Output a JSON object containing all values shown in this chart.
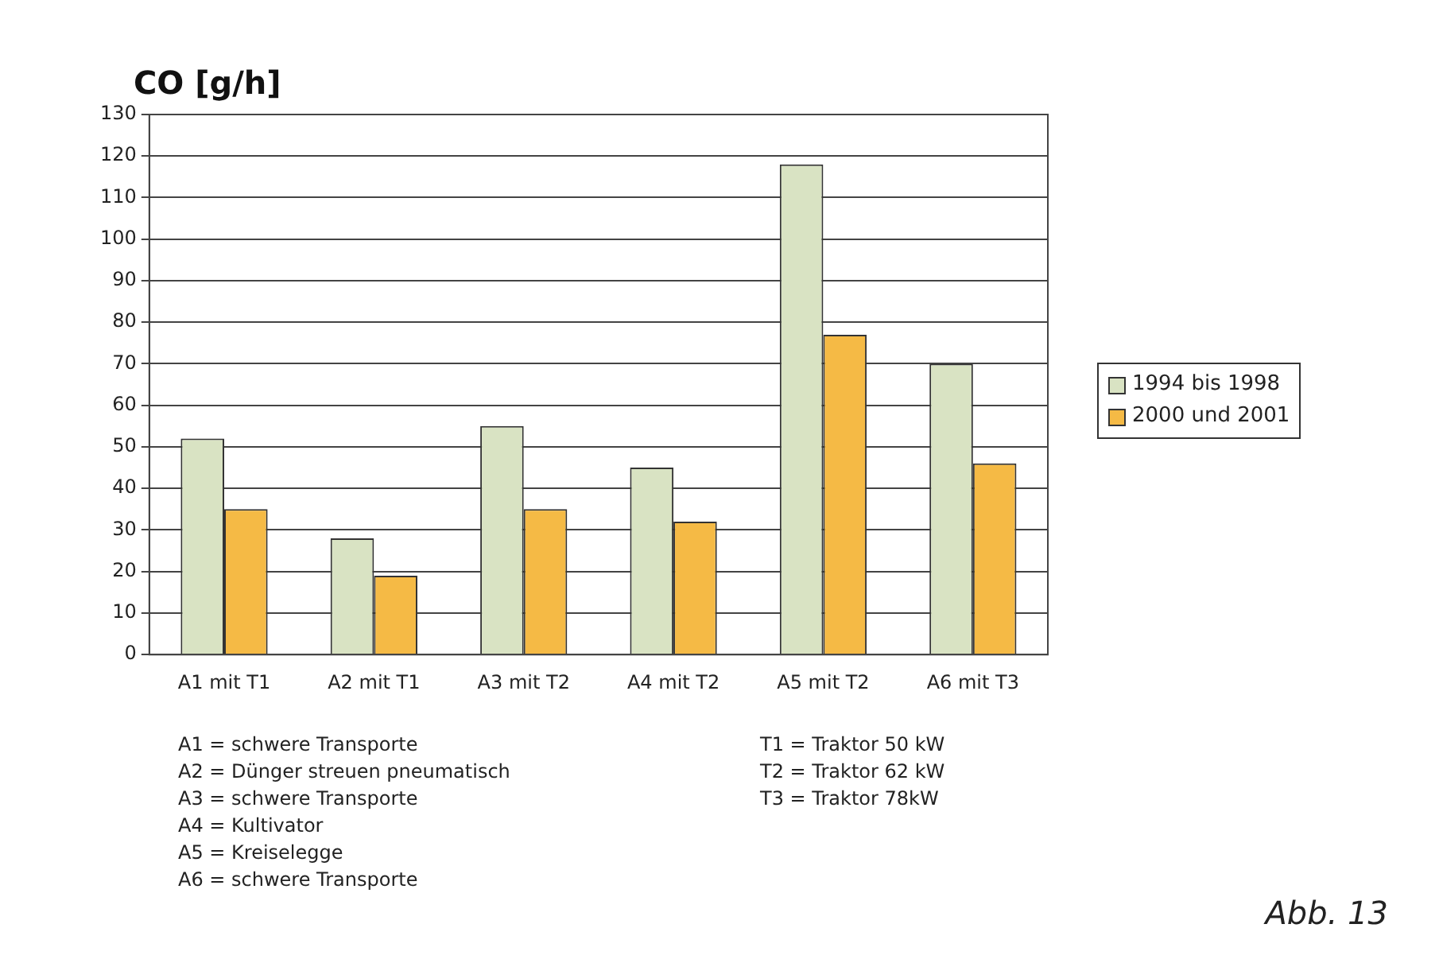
{
  "chart_data": {
    "type": "bar",
    "title": "CO [g/h]",
    "categories": [
      "A1 mit T1",
      "A2 mit T1",
      "A3 mit T2",
      "A4 mit T2",
      "A5 mit T2",
      "A6 mit T3"
    ],
    "series": [
      {
        "name": "1994 bis 1998",
        "color": "#d9e3c3",
        "values": [
          52,
          28,
          55,
          45,
          118,
          70
        ]
      },
      {
        "name": "2000 und 2001",
        "color": "#f5ba45",
        "values": [
          35,
          19,
          35,
          32,
          77,
          46
        ]
      }
    ],
    "ylim": [
      0,
      130
    ],
    "yticks": [
      0,
      10,
      20,
      30,
      40,
      50,
      60,
      70,
      80,
      90,
      100,
      110,
      120,
      130
    ],
    "grid": "y",
    "legend": "right",
    "annotations": [
      "A1 = schwere Transporte",
      "A2 = Dünger streuen pneumatisch",
      "A3 = schwere Transporte",
      "A4 = Kultivator",
      "A5 = Kreiselegge",
      "A6 = schwere Transporte",
      "T1 = Traktor 50 kW",
      "T2 = Traktor 62 kW",
      "T3 = Traktor 78kW",
      "Abb. 13"
    ]
  }
}
